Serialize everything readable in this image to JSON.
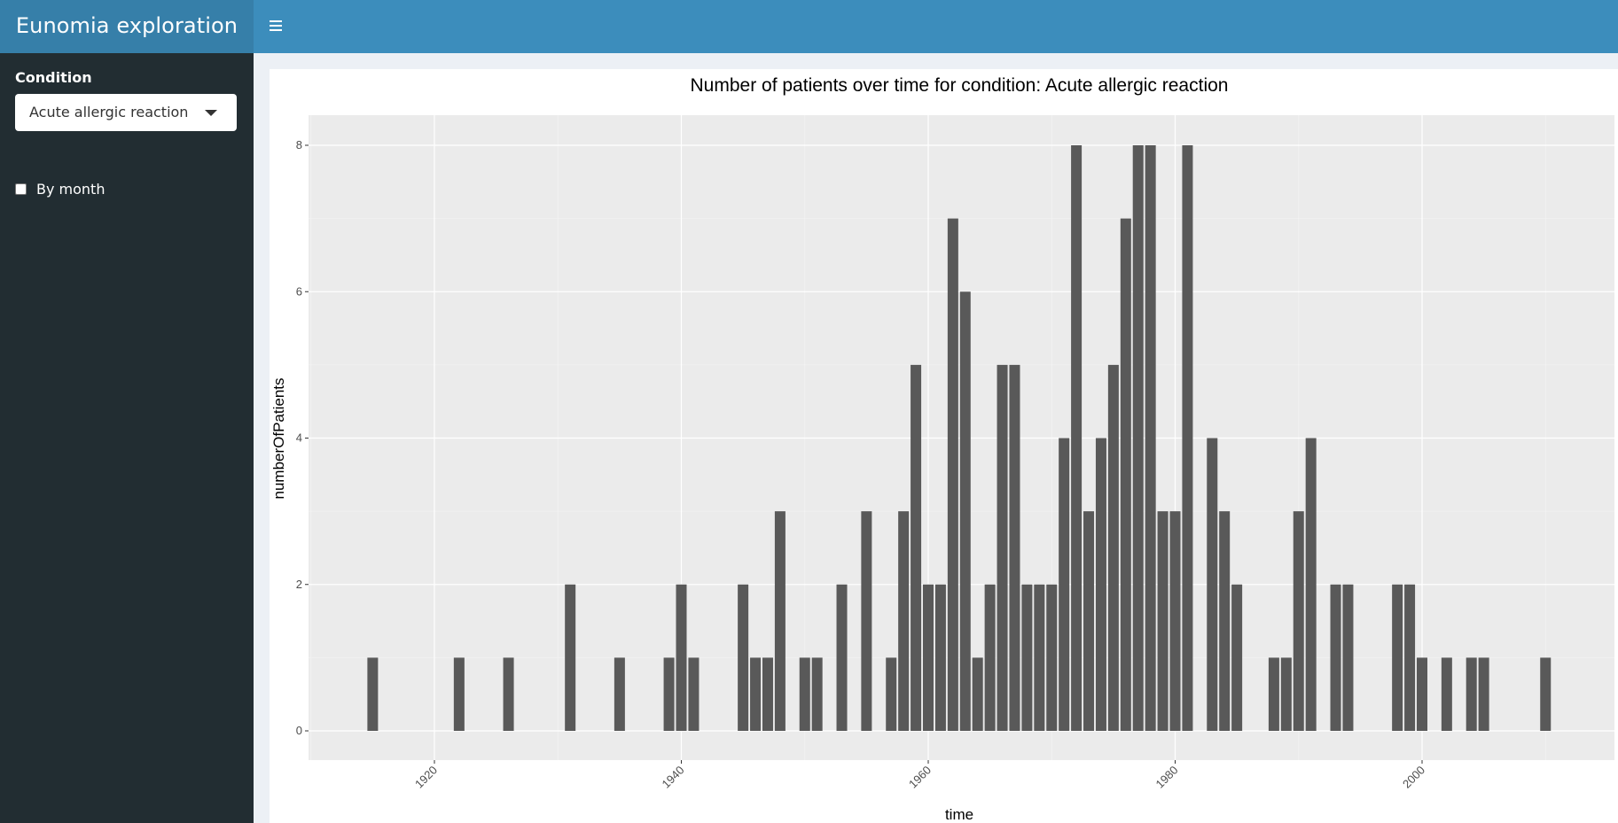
{
  "header": {
    "brand": "Eunomia exploration",
    "toggle_icon": "hamburger-icon"
  },
  "sidebar": {
    "condition_label": "Condition",
    "condition_selected": "Acute allergic reaction",
    "by_month_label": "By month",
    "by_month_checked": false
  },
  "chart_data": {
    "type": "bar",
    "title": "Number of patients over time for condition: Acute allergic reaction",
    "xlabel": "time",
    "ylabel": "numberOfPatients",
    "xlim": [
      1910,
      2015
    ],
    "ylim": [
      0,
      8
    ],
    "x_ticks": [
      "1920",
      "1940",
      "1960",
      "1980",
      "2000"
    ],
    "y_ticks": [
      "0",
      "2",
      "4",
      "6",
      "8"
    ],
    "bar_color": "#595959",
    "panel_color": "#ebebeb",
    "grid": true,
    "x": [
      1915,
      1922,
      1926,
      1931,
      1935,
      1939,
      1940,
      1941,
      1945,
      1946,
      1947,
      1948,
      1950,
      1951,
      1953,
      1955,
      1957,
      1958,
      1959,
      1960,
      1961,
      1962,
      1963,
      1964,
      1965,
      1966,
      1967,
      1968,
      1969,
      1970,
      1971,
      1972,
      1973,
      1974,
      1975,
      1976,
      1977,
      1978,
      1979,
      1980,
      1981,
      1983,
      1984,
      1985,
      1988,
      1989,
      1990,
      1991,
      1993,
      1994,
      1998,
      1999,
      2000,
      2002,
      2004,
      2005,
      2010
    ],
    "values": [
      1,
      1,
      1,
      2,
      1,
      1,
      2,
      1,
      2,
      1,
      1,
      3,
      1,
      1,
      2,
      3,
      1,
      3,
      5,
      2,
      2,
      7,
      6,
      1,
      2,
      5,
      5,
      2,
      2,
      2,
      4,
      8,
      3,
      4,
      5,
      7,
      8,
      8,
      3,
      3,
      8,
      4,
      3,
      2,
      1,
      1,
      3,
      4,
      2,
      2,
      2,
      2,
      1,
      1,
      1,
      1,
      1
    ]
  }
}
